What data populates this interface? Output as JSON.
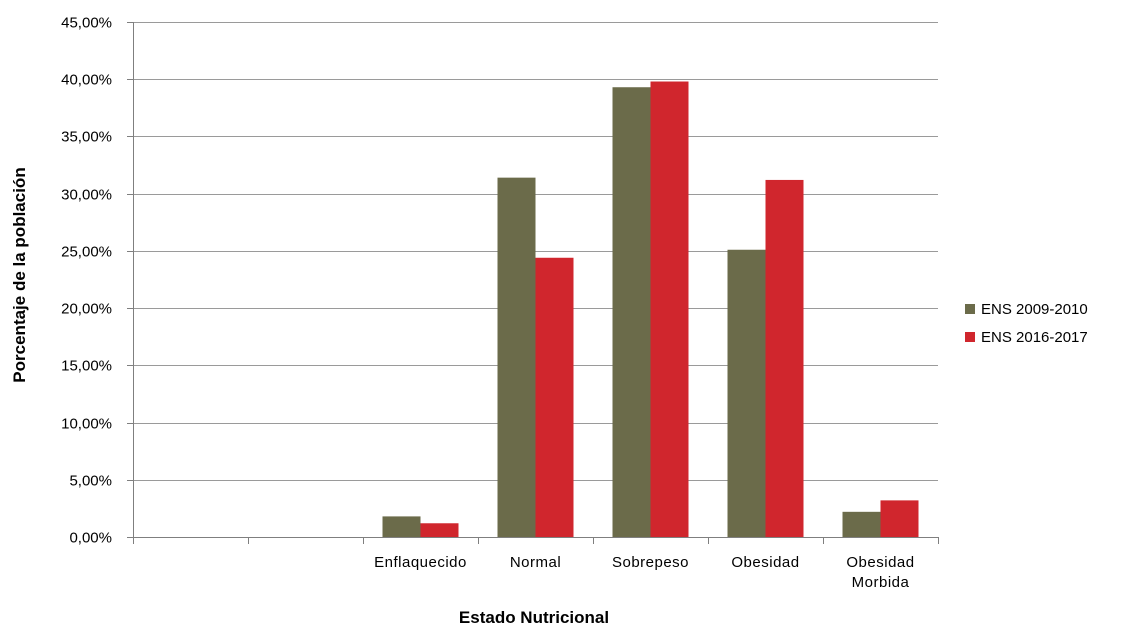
{
  "chart_data": {
    "type": "bar",
    "title": "",
    "xlabel": "Estado Nutricional",
    "ylabel": "Porcentaje de la población",
    "categories": [
      "",
      "",
      "Enflaquecido",
      "Normal",
      "Sobrepeso",
      "Obesidad",
      "Obesidad Morbida"
    ],
    "series": [
      {
        "name": "ENS 2009-2010",
        "color": "#6b6b4a",
        "values": [
          null,
          null,
          1.8,
          31.4,
          39.3,
          25.1,
          2.2
        ]
      },
      {
        "name": "ENS 2016-2017",
        "color": "#d0262d",
        "values": [
          null,
          null,
          1.2,
          24.4,
          39.8,
          31.2,
          3.2
        ]
      }
    ],
    "ylim": [
      0,
      45
    ],
    "yticks": [
      0,
      5,
      10,
      15,
      20,
      25,
      30,
      35,
      40,
      45
    ],
    "ytick_labels": [
      "0,00%",
      "5,00%",
      "10,00%",
      "15,00%",
      "20,00%",
      "25,00%",
      "30,00%",
      "35,00%",
      "40,00%",
      "45,00%"
    ],
    "grid": true,
    "legend_position": "right"
  }
}
